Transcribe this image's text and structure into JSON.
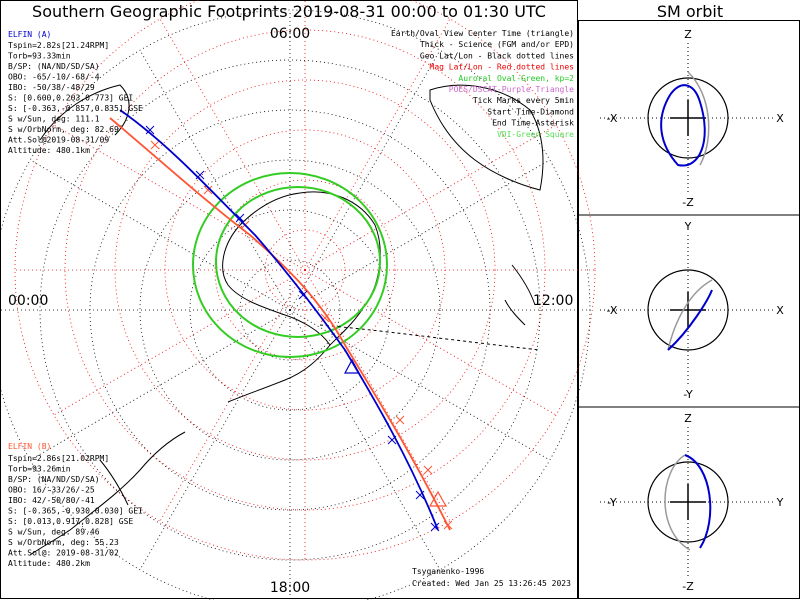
{
  "title": "Southern Geographic Footprints 2019-08-31 00:00 to 01:30 UTC",
  "sm_title": "SM orbit",
  "hour_labels": [
    "06:00",
    "00:00",
    "12:00",
    "18:00"
  ],
  "elfin_a": {
    "name": "ELFIN (A)",
    "lines": [
      "Tspin=2.82s[21.24RPM]",
      "Torb=93.33min",
      "B/SP: (NA/ND/SD/SA)",
      "OBO: -65/-10/-68/-4",
      "IBO: -50/38/-48/29",
      "S: [0.600,0.203,0.773] GEI",
      "S: [-0.363,-0.857,0.835] GSE",
      "S w/Sun, deg: 111.1",
      "S w/OrbNorm, deg: 82.69",
      "Att.Sol@2019-08-31/09",
      "Altitude: 480.1km"
    ],
    "color": "#0000cc"
  },
  "elfin_b": {
    "name": "ELFIN (B)",
    "lines": [
      "Tspin=2.86s[21.02RPM]",
      "Torb=93.26min",
      "B/SP: (NA/ND/SD/SA)",
      "OBO: 16/-33/26/-25",
      "IBO: 42/-50/80/-41",
      "S: [-0.365,-0.930,0.030] GEI",
      "S: [0.013,0.917,0.828] GSE",
      "S w/Sun, deg: 89.46",
      "S w/OrbNorm, deg: 55.23",
      "Att.Sol@: 2019-08-31/02",
      "Altitude: 480.2km"
    ],
    "color": "#ff5533"
  },
  "legend": [
    {
      "text": "Earth/Oval View Center Time (triangle)",
      "color": "#000000"
    },
    {
      "text": "Thick - Science (FGM and/or EPD)",
      "color": "#000000"
    },
    {
      "text": "Geo Lat/Lon - Black dotted lines",
      "color": "#000000"
    },
    {
      "text": "Mag Lat/Lon - Red dotted lines",
      "color": "#ee0000"
    },
    {
      "text": "Auroral Oval-Green, kp=2",
      "color": "#22cc22"
    },
    {
      "text": "POES/DSCAT-Purple Triangle",
      "color": "#cc66cc"
    },
    {
      "text": "Tick Marks every 5min",
      "color": "#000000"
    },
    {
      "text": "Start Time-Diamond",
      "color": "#000000"
    },
    {
      "text": "End Time-Asterisk",
      "color": "#000000"
    },
    {
      "text": "VDI-Green Square",
      "color": "#55dd55"
    }
  ],
  "footer": {
    "model": "Tsyganenko-1996",
    "created": "Created: Wed Jan 25 13:26:45 2023"
  },
  "sm_panels": [
    {
      "top": "Z",
      "bottom": "-Z",
      "left": "-X",
      "right": "X"
    },
    {
      "top": "Y",
      "bottom": "-Y",
      "left": "-X",
      "right": "X"
    },
    {
      "top": "Z",
      "bottom": "-Z",
      "left": "-Y",
      "right": "Y"
    }
  ]
}
